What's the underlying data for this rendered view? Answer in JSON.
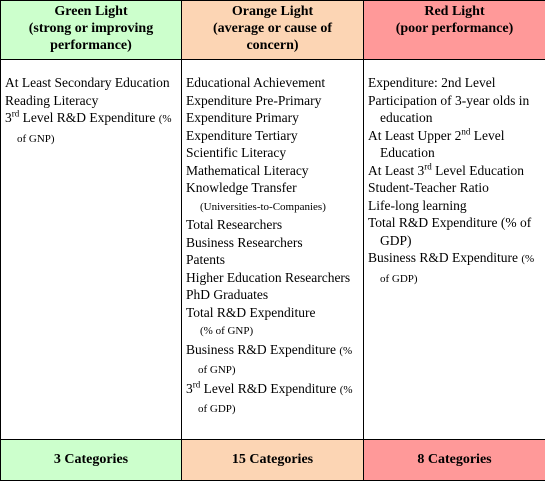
{
  "headers": [
    {
      "line1": "Green Light",
      "line2": "(strong or improving",
      "line3": "performance)"
    },
    {
      "line1": "Orange Light",
      "line2": "(average or cause of",
      "line3": "concern)"
    },
    {
      "line1": "Red Light",
      "line2": "(poor performance)",
      "line3": ""
    }
  ],
  "green_items": {
    "i0": "At Least Secondary Education",
    "i1": "Reading Literacy",
    "i2_sup": "rd",
    "i2_pre": "3",
    "i2_main": " Level R&D Expenditure ",
    "i2_small": "(% of GNP)"
  },
  "orange_items": {
    "i0": "Educational Achievement",
    "i1": "Expenditure Pre-Primary",
    "i2": "Expenditure Primary",
    "i3": "Expenditure Tertiary",
    "i4": "Scientific Literacy",
    "i5": "Mathematical Literacy",
    "i6": "Knowledge Transfer",
    "i6_small": "(Universities-to-Companies)",
    "i7": "Total Researchers",
    "i8": "Business Researchers",
    "i9": "Patents",
    "i10": "Higher Education Researchers",
    "i11": "PhD Graduates",
    "i12_main": "Total R&D Expenditure",
    "i12_small": "(% of GNP)",
    "i13_main": "Business R&D Expenditure ",
    "i13_small": "(% of GNP)",
    "i14_pre": "3",
    "i14_sup": "rd",
    "i14_main": " Level R&D Expenditure ",
    "i14_small": "(% of GDP)"
  },
  "red_items": {
    "i0": "Expenditure:  2nd Level",
    "i1": "Participation of 3-year olds in education",
    "i2_pre": "At Least Upper 2",
    "i2_sup": "nd",
    "i2_main": " Level Education",
    "i3_pre": "At Least 3",
    "i3_sup": "rd",
    "i3_main": " Level Education",
    "i4": "Student-Teacher Ratio",
    "i5": "Life-long learning",
    "i6": "Total R&D Expenditure (% of GDP)",
    "i7_main": "Business R&D Expenditure ",
    "i7_small": "(% of GDP)"
  },
  "footers": [
    "3 Categories",
    "15 Categories",
    "8 Categories"
  ],
  "colors": {
    "green": "#ccffcc",
    "orange": "#fcd5b4",
    "red": "#ff9999"
  }
}
